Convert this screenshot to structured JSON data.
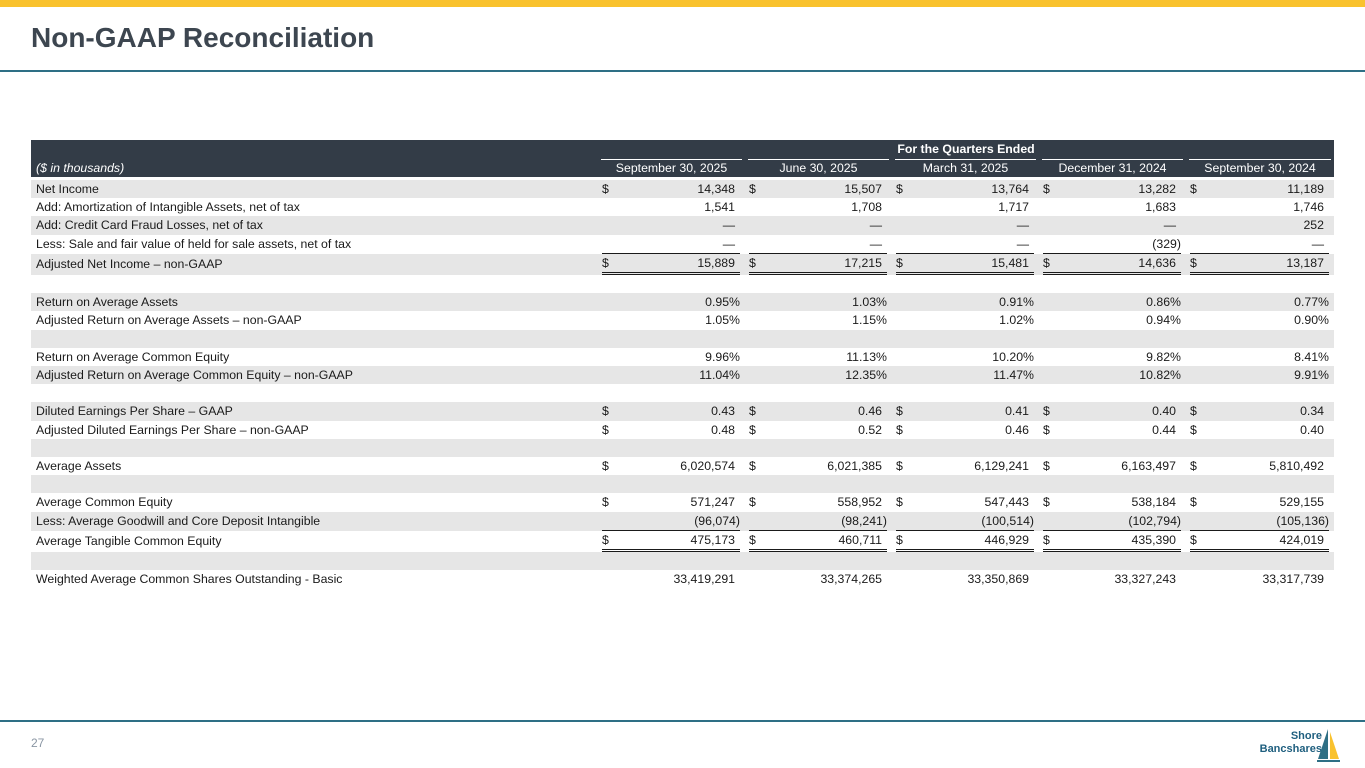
{
  "page": {
    "title": "Non-GAAP Reconciliation",
    "page_number": "27",
    "logo_line1": "Shore",
    "logo_line2": "Bancshares"
  },
  "colors": {
    "accent_yellow": "#f9c22e",
    "rule_teal": "#2e6f85",
    "header_dark": "#333c47",
    "row_shade": "#e6e6e6"
  },
  "table": {
    "group_header": "For the Quarters Ended",
    "units_label": "($ in thousands)",
    "columns": [
      "September 30, 2025",
      "June 30, 2025",
      "March 31, 2025",
      "December 31, 2024",
      "September 30, 2024"
    ],
    "rows": [
      {
        "label": "Net Income",
        "currency": true,
        "values": [
          "14,348",
          "15,507",
          "13,764",
          "13,282",
          "11,189"
        ]
      },
      {
        "label": "Add: Amortization of Intangible Assets, net of tax",
        "currency": false,
        "values": [
          "1,541",
          "1,708",
          "1,717",
          "1,683",
          "1,746"
        ]
      },
      {
        "label": "Add: Credit Card Fraud Losses, net of tax",
        "currency": false,
        "values": [
          "—",
          "—",
          "—",
          "—",
          "252"
        ]
      },
      {
        "label": "Less: Sale and fair value of held for sale assets, net of tax",
        "currency": false,
        "values": [
          "—",
          "—",
          "—",
          "(329)",
          "—"
        ]
      },
      {
        "label": "Adjusted Net Income – non-GAAP",
        "currency": true,
        "values": [
          "15,889",
          "17,215",
          "15,481",
          "14,636",
          "13,187"
        ]
      },
      {
        "label": "",
        "currency": false,
        "values": [
          "",
          "",
          "",
          "",
          ""
        ]
      },
      {
        "label": "Return on Average Assets",
        "currency": false,
        "values": [
          "0.95%",
          "1.03%",
          "0.91%",
          "0.86%",
          "0.77%"
        ]
      },
      {
        "label": "Adjusted Return on Average Assets – non-GAAP",
        "currency": false,
        "values": [
          "1.05%",
          "1.15%",
          "1.02%",
          "0.94%",
          "0.90%"
        ]
      },
      {
        "label": "",
        "currency": false,
        "values": [
          "",
          "",
          "",
          "",
          ""
        ]
      },
      {
        "label": "Return on Average Common Equity",
        "currency": false,
        "values": [
          "9.96%",
          "11.13%",
          "10.20%",
          "9.82%",
          "8.41%"
        ]
      },
      {
        "label": "Adjusted Return on Average Common Equity – non-GAAP",
        "currency": false,
        "values": [
          "11.04%",
          "12.35%",
          "11.47%",
          "10.82%",
          "9.91%"
        ]
      },
      {
        "label": "",
        "currency": false,
        "values": [
          "",
          "",
          "",
          "",
          ""
        ]
      },
      {
        "label": "Diluted Earnings Per Share – GAAP",
        "currency": true,
        "values": [
          "0.43",
          "0.46",
          "0.41",
          "0.40",
          "0.34"
        ]
      },
      {
        "label": "Adjusted Diluted Earnings Per Share – non-GAAP",
        "currency": true,
        "values": [
          "0.48",
          "0.52",
          "0.46",
          "0.44",
          "0.40"
        ]
      },
      {
        "label": "",
        "currency": false,
        "values": [
          "",
          "",
          "",
          "",
          ""
        ]
      },
      {
        "label": "Average Assets",
        "currency": true,
        "values": [
          "6,020,574",
          "6,021,385",
          "6,129,241",
          "6,163,497",
          "5,810,492"
        ]
      },
      {
        "label": "",
        "currency": false,
        "values": [
          "",
          "",
          "",
          "",
          ""
        ]
      },
      {
        "label": "Average Common Equity",
        "currency": true,
        "values": [
          "571,247",
          "558,952",
          "547,443",
          "538,184",
          "529,155"
        ]
      },
      {
        "label": "Less: Average Goodwill and Core Deposit Intangible",
        "currency": false,
        "values": [
          "(96,074)",
          "(98,241)",
          "(100,514)",
          "(102,794)",
          "(105,136)"
        ]
      },
      {
        "label": "Average Tangible Common Equity",
        "currency": true,
        "values": [
          "475,173",
          "460,711",
          "446,929",
          "435,390",
          "424,019"
        ]
      },
      {
        "label": "",
        "currency": false,
        "values": [
          "",
          "",
          "",
          "",
          ""
        ]
      },
      {
        "label": "Weighted Average Common Shares Outstanding - Basic",
        "currency": false,
        "values": [
          "33,419,291",
          "33,374,265",
          "33,350,869",
          "33,327,243",
          "33,317,739"
        ]
      }
    ]
  }
}
